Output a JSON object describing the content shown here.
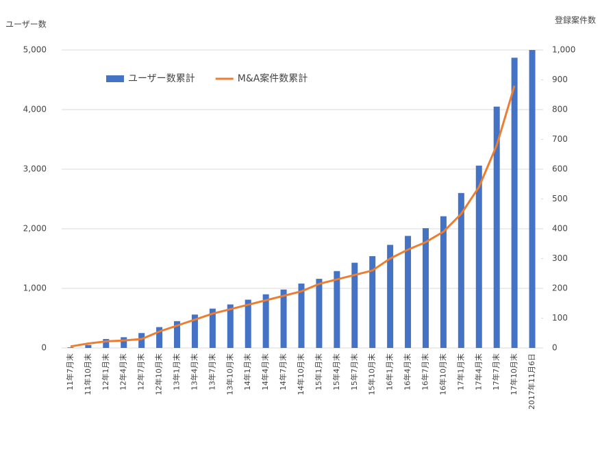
{
  "chart_data": {
    "type": "bar-line",
    "y_label": "ユーザー数",
    "y2_label": "登録案件数",
    "categories": [
      "11年7月末",
      "11年10月末",
      "12年1月末",
      "12年4月末",
      "12年7月末",
      "12年10月末",
      "13年1月末",
      "13年4月末",
      "13年7月末",
      "13年10月末",
      "14年1月末",
      "14年4月末",
      "14年7月末",
      "14年10月末",
      "15年1月末",
      "15年4月末",
      "15年7月末",
      "15年10月末",
      "16年1月末",
      "16年4月末",
      "16年7月末",
      "16年10月末",
      "17年1月末",
      "17年4月末",
      "17年7月末",
      "17年10月末",
      "2017年11月6日"
    ],
    "series": [
      {
        "name": "ユーザー数累計",
        "type": "bar",
        "color": "#4472c4",
        "values": [
          10,
          50,
          150,
          180,
          250,
          350,
          450,
          560,
          660,
          730,
          810,
          900,
          980,
          1080,
          1160,
          1290,
          1430,
          1540,
          1730,
          1880,
          2010,
          2210,
          2600,
          3060,
          4050,
          4870,
          5000
        ]
      },
      {
        "name": "M&A案件数累計",
        "type": "line",
        "axis": "y2",
        "color": "#ed7d31",
        "values": [
          5,
          15,
          22,
          25,
          30,
          55,
          75,
          95,
          115,
          130,
          145,
          160,
          175,
          190,
          215,
          230,
          245,
          260,
          300,
          330,
          355,
          390,
          450,
          540,
          680,
          880,
          null
        ]
      }
    ],
    "ylim": [
      0,
      5000
    ],
    "yticks": [
      0,
      {
        "value": 1000,
        "label": "1,000"
      },
      {
        "value": 2000,
        "label": "2,000"
      },
      {
        "value": 3000,
        "label": "3,000"
      },
      {
        "value": 4000,
        "label": "4,000"
      },
      {
        "value": 5000,
        "label": "5,000"
      }
    ],
    "y2lim": [
      0,
      1000
    ],
    "y2ticks": [
      0,
      100,
      200,
      300,
      400,
      500,
      600,
      700,
      800,
      900,
      {
        "value": 1000,
        "label": "1,000"
      }
    ],
    "grid": true,
    "legend": "upper left"
  }
}
